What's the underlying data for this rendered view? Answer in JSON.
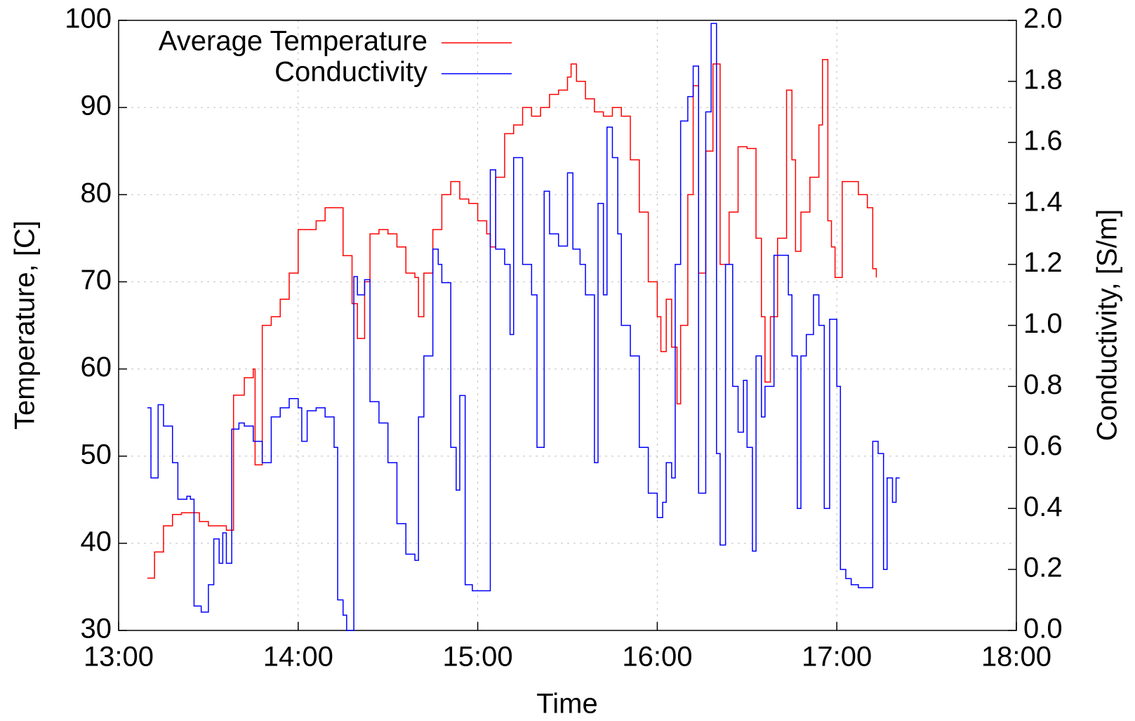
{
  "chart_data": {
    "type": "line",
    "line_style": "steps",
    "xlabel": "Time",
    "ylabel": "Temperature, [C]",
    "y2label": "Conductivity, [S/m]",
    "xlim": [
      13,
      18
    ],
    "xticks": [
      {
        "value": 13,
        "label": "13:00"
      },
      {
        "value": 14,
        "label": "14:00"
      },
      {
        "value": 15,
        "label": "15:00"
      },
      {
        "value": 16,
        "label": "16:00"
      },
      {
        "value": 17,
        "label": "17:00"
      },
      {
        "value": 18,
        "label": "18:00"
      }
    ],
    "ylim": [
      30,
      100
    ],
    "yticks": [
      30,
      40,
      50,
      60,
      70,
      80,
      90,
      100
    ],
    "y2lim": [
      0,
      2
    ],
    "y2ticks": [
      {
        "value": 0,
        "label": "0.0"
      },
      0.2,
      0.4,
      0.6,
      0.8,
      {
        "value": 1,
        "label": "1.0"
      },
      1.2,
      1.4,
      1.6,
      1.8,
      {
        "value": 2,
        "label": "2.0"
      }
    ],
    "grid": true,
    "legend": "upper left",
    "series": [
      {
        "name": "Average Temperature",
        "color": "#ff0000",
        "x": [
          13.16,
          13.2,
          13.25,
          13.3,
          13.35,
          13.4,
          13.45,
          13.5,
          13.55,
          13.6,
          13.64,
          13.7,
          13.75,
          13.76,
          13.8,
          13.85,
          13.9,
          13.95,
          14.0,
          14.05,
          14.1,
          14.15,
          14.2,
          14.25,
          14.3,
          14.33,
          14.37,
          14.4,
          14.45,
          14.5,
          14.55,
          14.6,
          14.65,
          14.67,
          14.7,
          14.75,
          14.8,
          14.85,
          14.9,
          14.95,
          15.0,
          15.05,
          15.07,
          15.1,
          15.15,
          15.2,
          15.25,
          15.3,
          15.35,
          15.4,
          15.45,
          15.5,
          15.52,
          15.55,
          15.6,
          15.65,
          15.7,
          15.75,
          15.8,
          15.85,
          15.9,
          15.95,
          16.0,
          16.02,
          16.05,
          16.08,
          16.11,
          16.13,
          16.17,
          16.2,
          16.23,
          16.27,
          16.31,
          16.35,
          16.4,
          16.45,
          16.5,
          16.55,
          16.58,
          16.6,
          16.63,
          16.67,
          16.72,
          16.75,
          16.77,
          16.8,
          16.85,
          16.9,
          16.92,
          16.95,
          16.97,
          16.99,
          17.03,
          17.07,
          17.12,
          17.17,
          17.2,
          17.22
        ],
        "values": [
          36,
          39,
          42,
          43.3,
          43.5,
          43.5,
          42.5,
          42,
          42,
          41.5,
          57,
          59,
          60,
          49,
          65,
          66,
          68,
          71,
          76,
          76,
          77,
          78.5,
          78.5,
          73,
          67.5,
          63.5,
          70,
          75.5,
          76,
          75.5,
          74,
          71,
          70.5,
          66,
          71,
          76,
          80,
          81.5,
          79.5,
          79,
          77,
          75.5,
          74,
          82,
          87,
          88,
          90,
          89,
          90,
          91.5,
          92,
          93.5,
          95,
          93,
          91,
          89.5,
          89,
          90,
          89,
          84,
          78,
          70,
          66,
          62,
          68,
          62.5,
          56,
          65,
          80,
          92.5,
          71,
          85,
          95,
          72,
          78,
          85.5,
          85.3,
          75,
          66,
          58.5,
          66,
          75,
          92,
          84,
          73.5,
          78,
          82,
          88,
          95.5,
          77,
          74,
          70.5,
          81.5,
          81.5,
          80,
          78.5,
          71.5,
          70.5
        ]
      },
      {
        "name": "Conductivity",
        "color": "#0000ff",
        "axis": "y2",
        "x": [
          13.16,
          13.18,
          13.22,
          13.25,
          13.3,
          13.33,
          13.38,
          13.4,
          13.42,
          13.46,
          13.5,
          13.53,
          13.56,
          13.58,
          13.6,
          13.63,
          13.67,
          13.7,
          13.75,
          13.8,
          13.85,
          13.9,
          13.95,
          14.0,
          14.02,
          14.05,
          14.1,
          14.15,
          14.2,
          14.22,
          14.25,
          14.27,
          14.31,
          14.33,
          14.37,
          14.4,
          14.45,
          14.5,
          14.55,
          14.6,
          14.65,
          14.67,
          14.7,
          14.75,
          14.78,
          14.8,
          14.85,
          14.88,
          14.9,
          14.93,
          14.97,
          15.05,
          15.07,
          15.1,
          15.15,
          15.18,
          15.2,
          15.25,
          15.3,
          15.33,
          15.37,
          15.4,
          15.45,
          15.5,
          15.53,
          15.57,
          15.6,
          15.65,
          15.67,
          15.7,
          15.72,
          15.75,
          15.78,
          15.8,
          15.85,
          15.9,
          15.95,
          16.0,
          16.03,
          16.05,
          16.08,
          16.1,
          16.13,
          16.17,
          16.2,
          16.23,
          16.27,
          16.3,
          16.33,
          16.35,
          16.38,
          16.42,
          16.45,
          16.48,
          16.5,
          16.53,
          16.55,
          16.58,
          16.6,
          16.65,
          16.7,
          16.73,
          16.75,
          16.78,
          16.8,
          16.83,
          16.87,
          16.9,
          16.93,
          16.96,
          17.0,
          17.02,
          17.05,
          17.08,
          17.12,
          17.17,
          17.2,
          17.23,
          17.26,
          17.28,
          17.31,
          17.33,
          17.35
        ],
        "values": [
          0.73,
          0.5,
          0.74,
          0.67,
          0.55,
          0.43,
          0.44,
          0.43,
          0.08,
          0.06,
          0.15,
          0.3,
          0.22,
          0.32,
          0.22,
          0.66,
          0.68,
          0.67,
          0.62,
          0.55,
          0.7,
          0.73,
          0.76,
          0.73,
          0.62,
          0.72,
          0.73,
          0.7,
          0.6,
          0.1,
          0.05,
          0,
          1.16,
          1.1,
          1.15,
          0.75,
          0.68,
          0.55,
          0.35,
          0.25,
          0.23,
          0.7,
          0.9,
          1.25,
          1.2,
          1.14,
          0.6,
          0.46,
          0.77,
          0.15,
          0.13,
          0.13,
          1.51,
          1.25,
          1.2,
          0.97,
          1.55,
          1.2,
          1.1,
          0.6,
          1.44,
          1.3,
          1.26,
          1.5,
          1.25,
          1.2,
          1.1,
          0.55,
          1.4,
          1.1,
          1.65,
          1.55,
          1.3,
          1,
          0.9,
          0.6,
          0.45,
          0.37,
          0.42,
          0.55,
          0.5,
          1.2,
          1.67,
          1.75,
          1.85,
          0.45,
          1.7,
          1.99,
          0.58,
          0.28,
          1.2,
          0.8,
          0.65,
          0.82,
          0.6,
          0.26,
          0.9,
          0.7,
          0.8,
          1.23,
          1.23,
          1.1,
          0.9,
          0.4,
          0.9,
          0.97,
          1.1,
          1,
          0.4,
          1.02,
          0.8,
          0.2,
          0.17,
          0.15,
          0.14,
          0.14,
          0.62,
          0.58,
          0.2,
          0.5,
          0.42,
          0.5,
          0.5
        ]
      }
    ]
  }
}
